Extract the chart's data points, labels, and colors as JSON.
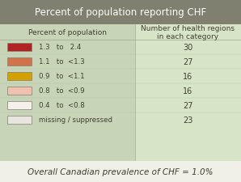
{
  "title": "Percent of population reporting CHF",
  "col1_header": "Percent of population",
  "col2_header": "Number of health regions\nin each category",
  "rows": [
    {
      "color": "#b22222",
      "label": "1.3   to   2.4",
      "count": "30"
    },
    {
      "color": "#d2724a",
      "label": "1.1   to  <1.3",
      "count": "27"
    },
    {
      "color": "#d4a000",
      "label": "0.9   to  <1.1",
      "count": "16"
    },
    {
      "color": "#f0c0b0",
      "label": "0.8   to  <0.9",
      "count": "16"
    },
    {
      "color": "#f5f0ec",
      "label": "0.4   to  <0.8",
      "count": "27"
    },
    {
      "color": "#e8e4e0",
      "label": "missing / suppressed",
      "count": "23"
    }
  ],
  "footer": "Overall Canadian prevalence of CHF = 1.0%",
  "title_bg": "#808070",
  "table_bg": "#c8d4b8",
  "right_col_bg": "#d8e4c8",
  "footer_bg": "#f0f0e8",
  "title_color": "#ffffff",
  "text_color": "#404030",
  "footer_color": "#404030"
}
